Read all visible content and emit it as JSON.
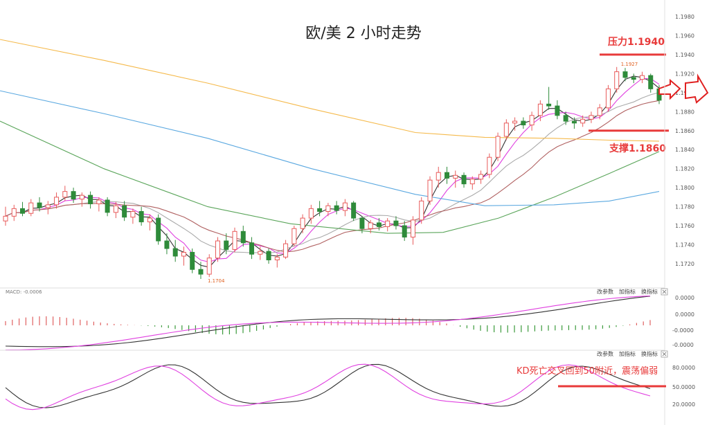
{
  "chart_data": {
    "type": "candlestick",
    "title": "欧/美  2 小时走势",
    "price_axis": {
      "ticks": [
        "1.1980",
        "1.1960",
        "1.1940",
        "1.1920",
        "1.1900",
        "1.1880",
        "1.1860",
        "1.1840",
        "1.1820",
        "1.1800",
        "1.1780",
        "1.1760",
        "1.1740",
        "1.1720"
      ],
      "range": [
        1.17,
        1.199
      ]
    },
    "resistance": {
      "label": "压力1.1940",
      "value": 1.194,
      "color": "#e83a3a"
    },
    "support": {
      "label": "支撑1.1860",
      "value": 1.186,
      "color": "#e83a3a"
    },
    "high_marker": {
      "label": "1.1927",
      "value": 1.1927
    },
    "low_marker": {
      "label": "1.1704",
      "value": 1.1704
    },
    "colors": {
      "up": "#e85a5a",
      "down": "#2e8b3a",
      "ma_black": "#333333",
      "ma_pink": "#e040e0",
      "ma_grey": "#aaaaaa",
      "ma_brown": "#b06060",
      "ma_green": "#5aa55a",
      "ma_blue": "#5aa8e0",
      "ma_orange": "#f5b94a"
    },
    "candles": [
      [
        1.1765,
        1.178,
        1.176,
        1.177
      ],
      [
        1.177,
        1.1782,
        1.1765,
        1.1778
      ],
      [
        1.1778,
        1.1785,
        1.177,
        1.1773
      ],
      [
        1.1773,
        1.1788,
        1.177,
        1.1784
      ],
      [
        1.1784,
        1.179,
        1.1775,
        1.1779
      ],
      [
        1.1779,
        1.1786,
        1.1772,
        1.1782
      ],
      [
        1.1782,
        1.1795,
        1.1778,
        1.179
      ],
      [
        1.179,
        1.1802,
        1.1786,
        1.1796
      ],
      [
        1.1796,
        1.18,
        1.1784,
        1.1788
      ],
      [
        1.1788,
        1.1795,
        1.178,
        1.1792
      ],
      [
        1.1792,
        1.1796,
        1.1778,
        1.1783
      ],
      [
        1.1783,
        1.179,
        1.1775,
        1.1787
      ],
      [
        1.1787,
        1.179,
        1.177,
        1.1774
      ],
      [
        1.1774,
        1.1785,
        1.1768,
        1.1781
      ],
      [
        1.1781,
        1.1786,
        1.1765,
        1.1769
      ],
      [
        1.1769,
        1.1778,
        1.1762,
        1.1775
      ],
      [
        1.1775,
        1.178,
        1.176,
        1.1764
      ],
      [
        1.1764,
        1.1772,
        1.1755,
        1.1768
      ],
      [
        1.1768,
        1.1772,
        1.174,
        1.1744
      ],
      [
        1.1744,
        1.1752,
        1.173,
        1.1736
      ],
      [
        1.1736,
        1.1745,
        1.1722,
        1.1728
      ],
      [
        1.1728,
        1.1738,
        1.1718,
        1.1732
      ],
      [
        1.1732,
        1.1736,
        1.171,
        1.1714
      ],
      [
        1.1714,
        1.1722,
        1.1704,
        1.1709
      ],
      [
        1.1709,
        1.173,
        1.1706,
        1.1726
      ],
      [
        1.1726,
        1.1748,
        1.1722,
        1.1744
      ],
      [
        1.1744,
        1.1752,
        1.173,
        1.1735
      ],
      [
        1.1735,
        1.1758,
        1.1732,
        1.1754
      ],
      [
        1.1754,
        1.176,
        1.1738,
        1.1742
      ],
      [
        1.1742,
        1.1748,
        1.1725,
        1.173
      ],
      [
        1.173,
        1.1738,
        1.1724,
        1.1733
      ],
      [
        1.1733,
        1.1736,
        1.172,
        1.1724
      ],
      [
        1.1724,
        1.173,
        1.1716,
        1.1727
      ],
      [
        1.1727,
        1.1745,
        1.1725,
        1.1741
      ],
      [
        1.1741,
        1.176,
        1.1738,
        1.1757
      ],
      [
        1.1757,
        1.1772,
        1.1752,
        1.1768
      ],
      [
        1.1768,
        1.1782,
        1.1762,
        1.1778
      ],
      [
        1.1778,
        1.1786,
        1.177,
        1.1775
      ],
      [
        1.1775,
        1.1784,
        1.177,
        1.1781
      ],
      [
        1.1781,
        1.1786,
        1.1772,
        1.1776
      ],
      [
        1.1776,
        1.1788,
        1.177,
        1.1784
      ],
      [
        1.1784,
        1.1786,
        1.1765,
        1.1768
      ],
      [
        1.1768,
        1.177,
        1.1752,
        1.1757
      ],
      [
        1.1757,
        1.1766,
        1.1752,
        1.1763
      ],
      [
        1.1763,
        1.1768,
        1.1755,
        1.1759
      ],
      [
        1.1759,
        1.1768,
        1.1754,
        1.1765
      ],
      [
        1.1765,
        1.177,
        1.1756,
        1.176
      ],
      [
        1.176,
        1.1765,
        1.1744,
        1.1748
      ],
      [
        1.1748,
        1.177,
        1.174,
        1.1766
      ],
      [
        1.1766,
        1.179,
        1.1762,
        1.1786
      ],
      [
        1.1786,
        1.1812,
        1.1782,
        1.1808
      ],
      [
        1.1808,
        1.1822,
        1.18,
        1.1816
      ],
      [
        1.1816,
        1.1822,
        1.1804,
        1.181
      ],
      [
        1.181,
        1.1818,
        1.18,
        1.1813
      ],
      [
        1.1813,
        1.1816,
        1.18,
        1.1804
      ],
      [
        1.1804,
        1.1812,
        1.1798,
        1.1809
      ],
      [
        1.1809,
        1.1818,
        1.1804,
        1.1814
      ],
      [
        1.1814,
        1.1836,
        1.181,
        1.1832
      ],
      [
        1.1832,
        1.1858,
        1.1828,
        1.1854
      ],
      [
        1.1854,
        1.1872,
        1.185,
        1.1868
      ],
      [
        1.1868,
        1.1874,
        1.186,
        1.187
      ],
      [
        1.187,
        1.1874,
        1.1862,
        1.1866
      ],
      [
        1.1866,
        1.188,
        1.186,
        1.1876
      ],
      [
        1.1876,
        1.1892,
        1.187,
        1.1888
      ],
      [
        1.1888,
        1.1906,
        1.1882,
        1.1886
      ],
      [
        1.1886,
        1.1892,
        1.1872,
        1.1876
      ],
      [
        1.1876,
        1.188,
        1.1866,
        1.187
      ],
      [
        1.187,
        1.1874,
        1.1862,
        1.1868
      ],
      [
        1.1868,
        1.1876,
        1.1864,
        1.1872
      ],
      [
        1.1872,
        1.188,
        1.1868,
        1.1876
      ],
      [
        1.1876,
        1.1888,
        1.1872,
        1.1884
      ],
      [
        1.1884,
        1.1908,
        1.188,
        1.1904
      ],
      [
        1.1904,
        1.1927,
        1.19,
        1.1922
      ],
      [
        1.1922,
        1.1926,
        1.1912,
        1.1916
      ],
      [
        1.1916,
        1.192,
        1.191,
        1.1914
      ],
      [
        1.1914,
        1.1922,
        1.191,
        1.1918
      ],
      [
        1.1918,
        1.192,
        1.19,
        1.1904
      ],
      [
        1.1904,
        1.1908,
        1.1888,
        1.1892
      ]
    ],
    "macd_panel": {
      "label": "MACD: -0.0006",
      "buttons": [
        "改参数",
        "加指标",
        "换指标"
      ],
      "ticks": [
        "0.0000",
        "0.0000",
        "-0.0000",
        "-0.0000"
      ]
    },
    "kd_panel": {
      "buttons": [
        "改参数",
        "加指标",
        "换指标"
      ],
      "ticks": [
        "80.0000",
        "50.0000",
        "20.0000"
      ],
      "annotation": "KD死亡交叉回到50附近，震荡偏弱",
      "line_value": 50
    }
  }
}
